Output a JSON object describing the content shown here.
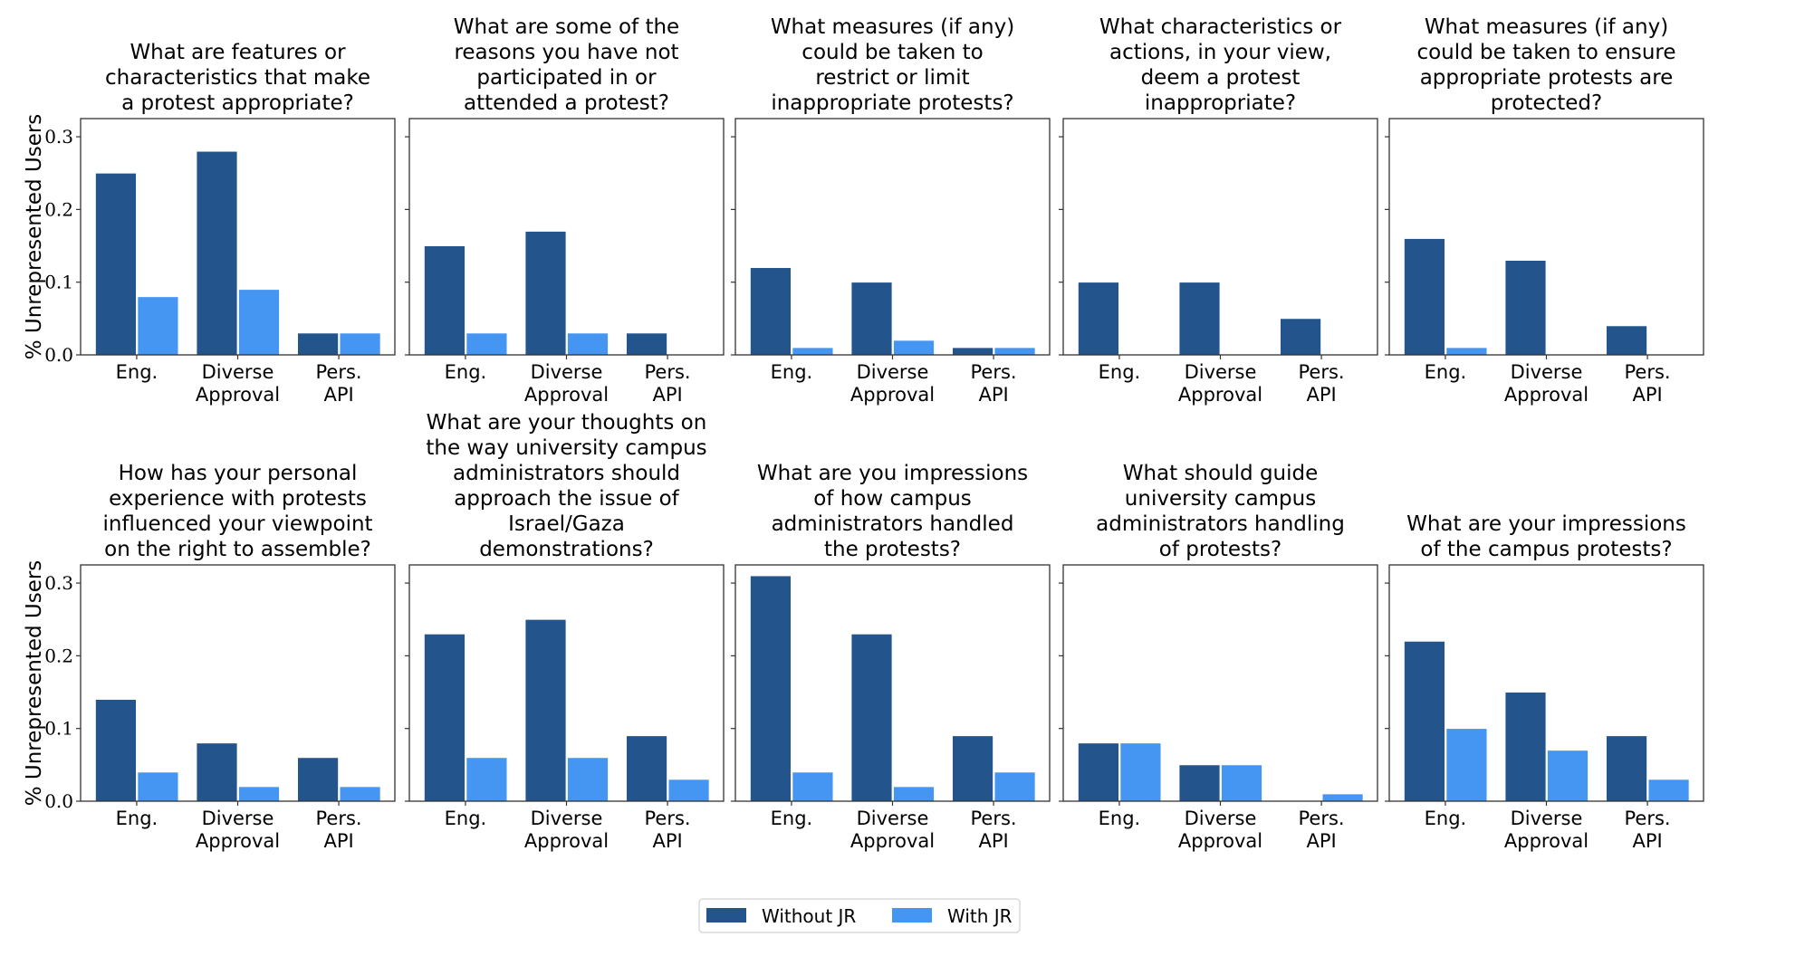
{
  "chart_data": {
    "type": "bar",
    "layout": "grid 2x5, shared y-axis per row",
    "ylabel": "% Unrepresented Users",
    "ylim": [
      0,
      0.325
    ],
    "yticks": [
      "0.0",
      "0.1",
      "0.2",
      "0.3"
    ],
    "ytick_values": [
      0.0,
      0.1,
      0.2,
      0.3
    ],
    "categories": [
      [
        "Eng."
      ],
      [
        "Diverse",
        "Approval"
      ],
      [
        "Pers.",
        "API"
      ]
    ],
    "series_names": [
      "Without JR",
      "With JR"
    ],
    "colors": {
      "Without JR": "#24548c",
      "With JR": "#4595f2"
    },
    "legend": {
      "position": "bottom-center",
      "entries": [
        "Without JR",
        "With JR"
      ]
    },
    "grid": false,
    "panels": [
      {
        "title": [
          "What are features or",
          "characteristics that make",
          "a protest appropriate?"
        ],
        "series": [
          {
            "name": "Without JR",
            "values": [
              0.25,
              0.28,
              0.03
            ]
          },
          {
            "name": "With JR",
            "values": [
              0.08,
              0.09,
              0.03
            ]
          }
        ]
      },
      {
        "title": [
          "What are some of the",
          "reasons you have not",
          "participated in or",
          "attended a protest?"
        ],
        "series": [
          {
            "name": "Without JR",
            "values": [
              0.15,
              0.17,
              0.03
            ]
          },
          {
            "name": "With JR",
            "values": [
              0.03,
              0.03,
              0.0
            ]
          }
        ]
      },
      {
        "title": [
          "What measures (if any)",
          "could be taken to",
          "restrict or limit",
          "inappropriate protests?"
        ],
        "series": [
          {
            "name": "Without JR",
            "values": [
              0.12,
              0.1,
              0.01
            ]
          },
          {
            "name": "With JR",
            "values": [
              0.01,
              0.02,
              0.01
            ]
          }
        ]
      },
      {
        "title": [
          "What characteristics or",
          "actions, in your view,",
          "deem a protest",
          "inappropriate?"
        ],
        "series": [
          {
            "name": "Without JR",
            "values": [
              0.1,
              0.1,
              0.05
            ]
          },
          {
            "name": "With JR",
            "values": [
              0.0,
              0.0,
              0.0
            ]
          }
        ]
      },
      {
        "title": [
          "What measures (if any)",
          "could be taken to ensure",
          "appropriate protests are",
          "protected?"
        ],
        "series": [
          {
            "name": "Without JR",
            "values": [
              0.16,
              0.13,
              0.04
            ]
          },
          {
            "name": "With JR",
            "values": [
              0.01,
              0.0,
              0.0
            ]
          }
        ]
      },
      {
        "title": [
          "How has your personal",
          "experience with protests",
          "influenced your viewpoint",
          "on the right to assemble?"
        ],
        "series": [
          {
            "name": "Without JR",
            "values": [
              0.14,
              0.08,
              0.06
            ]
          },
          {
            "name": "With JR",
            "values": [
              0.04,
              0.02,
              0.02
            ]
          }
        ]
      },
      {
        "title": [
          "What are your thoughts on",
          "the way university campus",
          "administrators should",
          "approach the issue of",
          "Israel/Gaza",
          "demonstrations?"
        ],
        "series": [
          {
            "name": "Without JR",
            "values": [
              0.23,
              0.25,
              0.09
            ]
          },
          {
            "name": "With JR",
            "values": [
              0.06,
              0.06,
              0.03
            ]
          }
        ]
      },
      {
        "title": [
          "What are you impressions",
          "of how campus",
          "administrators handled",
          "the protests?"
        ],
        "series": [
          {
            "name": "Without JR",
            "values": [
              0.31,
              0.23,
              0.09
            ]
          },
          {
            "name": "With JR",
            "values": [
              0.04,
              0.02,
              0.04
            ]
          }
        ]
      },
      {
        "title": [
          "What should guide",
          "university campus",
          "administrators handling",
          "of protests?"
        ],
        "series": [
          {
            "name": "Without JR",
            "values": [
              0.08,
              0.05,
              0.0
            ]
          },
          {
            "name": "With JR",
            "values": [
              0.08,
              0.05,
              0.01
            ]
          }
        ]
      },
      {
        "title": [
          "What are your impressions",
          "of the campus protests?"
        ],
        "series": [
          {
            "name": "Without JR",
            "values": [
              0.22,
              0.15,
              0.09
            ]
          },
          {
            "name": "With JR",
            "values": [
              0.1,
              0.07,
              0.03
            ]
          }
        ]
      }
    ]
  }
}
